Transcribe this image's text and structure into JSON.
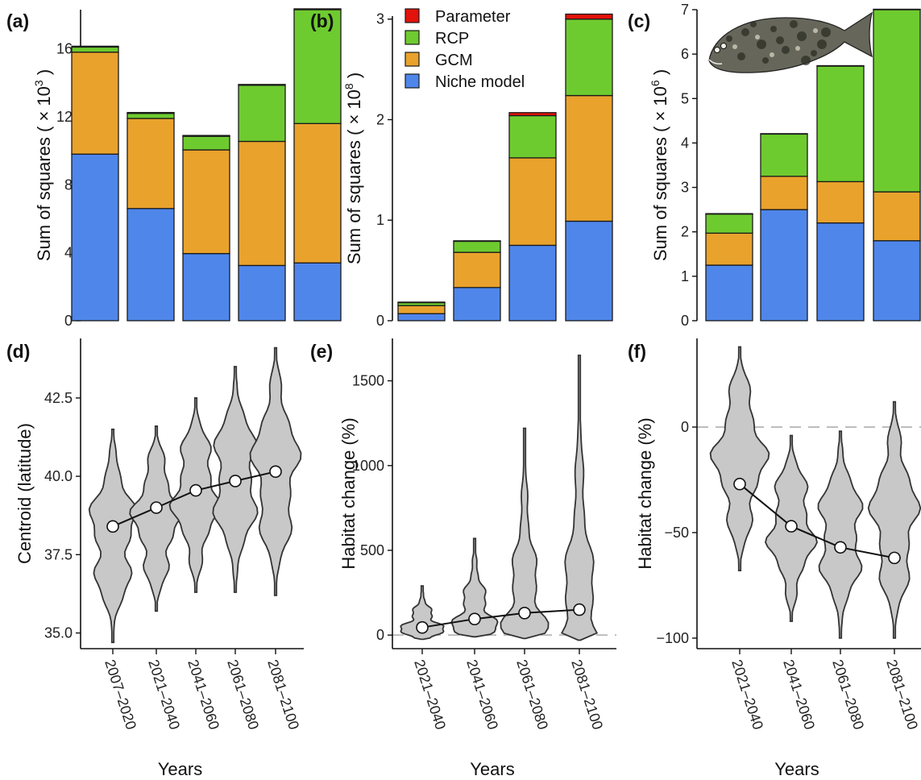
{
  "colors": {
    "Parameter": "#e3120b",
    "RCP": "#6ecb2f",
    "GCM": "#e9a22c",
    "Niche model": "#4f86ea",
    "violin_fill": "#c8c8c8",
    "violin_stroke": "#333333",
    "ref_line": "#bdbdbd"
  },
  "legend": [
    "Parameter",
    "RCP",
    "GCM",
    "Niche model"
  ],
  "icons": {
    "illustration": "flatfish-icon"
  },
  "chart_data": [
    {
      "panel": "(a)",
      "type": "bar",
      "stacked": true,
      "categories": [
        "2007-2020",
        "2021-2040",
        "2041-2060",
        "2061-2080",
        "2081-2100"
      ],
      "ylabel": "Sum of squares (×10³)",
      "ylim": [
        0,
        18.3
      ],
      "yticks": [
        0,
        4,
        8,
        12,
        16
      ],
      "series": [
        {
          "name": "Niche model",
          "values": [
            9.8,
            6.6,
            3.95,
            3.25,
            3.4
          ]
        },
        {
          "name": "GCM",
          "values": [
            6.0,
            5.3,
            6.1,
            7.3,
            8.2
          ]
        },
        {
          "name": "RCP",
          "values": [
            0.3,
            0.3,
            0.8,
            3.3,
            6.7
          ]
        },
        {
          "name": "Parameter",
          "values": [
            0.05,
            0.05,
            0.05,
            0.05,
            0.05
          ]
        }
      ]
    },
    {
      "panel": "(b)",
      "type": "bar",
      "stacked": true,
      "categories": [
        "2021-2040",
        "2041-2060",
        "2061-2080",
        "2081-2100"
      ],
      "ylabel": "Sum of squares (×10⁸)",
      "ylim": [
        0,
        3.03
      ],
      "yticks": [
        0,
        1,
        2,
        3
      ],
      "series": [
        {
          "name": "Niche model",
          "values": [
            0.07,
            0.33,
            0.75,
            0.99
          ]
        },
        {
          "name": "GCM",
          "values": [
            0.08,
            0.35,
            0.87,
            1.25
          ]
        },
        {
          "name": "RCP",
          "values": [
            0.03,
            0.11,
            0.42,
            0.76
          ]
        },
        {
          "name": "Parameter",
          "values": [
            0.005,
            0.005,
            0.03,
            0.05
          ]
        }
      ]
    },
    {
      "panel": "(c)",
      "type": "bar",
      "stacked": true,
      "categories": [
        "2021-2040",
        "2041-2060",
        "2061-2080",
        "2081-2100"
      ],
      "ylabel": "Sum of squares (×10⁶)",
      "ylim": [
        0,
        7.0
      ],
      "yticks": [
        0,
        1,
        2,
        3,
        4,
        5,
        6,
        7
      ],
      "series": [
        {
          "name": "Niche model",
          "values": [
            1.25,
            2.5,
            2.2,
            1.8
          ]
        },
        {
          "name": "GCM",
          "values": [
            0.72,
            0.75,
            0.93,
            1.1
          ]
        },
        {
          "name": "RCP",
          "values": [
            0.43,
            0.95,
            2.6,
            4.1
          ]
        },
        {
          "name": "Parameter",
          "values": [
            0.01,
            0.01,
            0.01,
            0.01
          ]
        }
      ]
    },
    {
      "panel": "(d)",
      "type": "violin",
      "categories": [
        "2007–2020",
        "2021–2040",
        "2041–2060",
        "2061–2080",
        "2081–2100"
      ],
      "xlabel": "Years",
      "ylabel": "Centroid (latitude)",
      "ylim": [
        34.5,
        44.4
      ],
      "yticks": [
        35.0,
        37.5,
        40.0,
        42.5
      ],
      "yticklabels": [
        "35.0",
        "37.5",
        "40.0",
        "42.5"
      ],
      "means": [
        38.4,
        39.0,
        39.55,
        39.85,
        40.15
      ],
      "ranges": [
        [
          34.7,
          41.5
        ],
        [
          35.7,
          41.6
        ],
        [
          36.3,
          42.5
        ],
        [
          36.3,
          43.5
        ],
        [
          36.2,
          44.1
        ]
      ],
      "reference_line": null
    },
    {
      "panel": "(e)",
      "type": "violin",
      "categories": [
        "2021–2040",
        "2041–2060",
        "2061–2080",
        "2081–2100"
      ],
      "xlabel": "Years",
      "ylabel": "Habitat change (%)",
      "ylim": [
        -80,
        1750
      ],
      "yticks": [
        0,
        500,
        1000,
        1500
      ],
      "yticklabels": [
        "0",
        "500",
        "1000",
        "1500"
      ],
      "means": [
        45,
        95,
        130,
        150
      ],
      "ranges": [
        [
          -25,
          290
        ],
        [
          -10,
          570
        ],
        [
          -20,
          1220
        ],
        [
          -30,
          1650
        ]
      ],
      "reference_line": 0
    },
    {
      "panel": "(f)",
      "type": "violin",
      "categories": [
        "2021–2040",
        "2041–2060",
        "2061–2080",
        "2081–2100"
      ],
      "xlabel": "Years",
      "ylabel": "Habitat change (%)",
      "ylim": [
        -105,
        42
      ],
      "yticks": [
        -100,
        -50,
        0
      ],
      "yticklabels": [
        "−100",
        "−50",
        "0"
      ],
      "means": [
        -27,
        -47,
        -57,
        -62
      ],
      "ranges": [
        [
          -68,
          38
        ],
        [
          -92,
          -4
        ],
        [
          -100,
          -2
        ],
        [
          -100,
          12
        ]
      ],
      "reference_line": 0
    }
  ]
}
